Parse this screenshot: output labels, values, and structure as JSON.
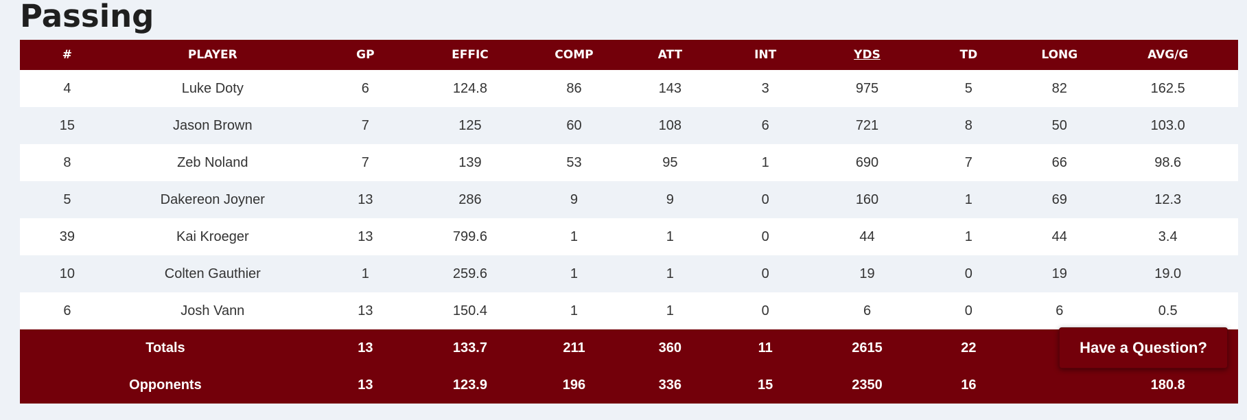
{
  "page": {
    "title": "Passing"
  },
  "table": {
    "headers": [
      "#",
      "PLAYER",
      "GP",
      "EFFIC",
      "COMP",
      "ATT",
      "INT",
      "YDS",
      "TD",
      "LONG",
      "AVG/G"
    ],
    "sorted_column": "YDS",
    "rows": [
      [
        "4",
        "Luke Doty",
        "6",
        "124.8",
        "86",
        "143",
        "3",
        "975",
        "5",
        "82",
        "162.5"
      ],
      [
        "15",
        "Jason Brown",
        "7",
        "125",
        "60",
        "108",
        "6",
        "721",
        "8",
        "50",
        "103.0"
      ],
      [
        "8",
        "Zeb Noland",
        "7",
        "139",
        "53",
        "95",
        "1",
        "690",
        "7",
        "66",
        "98.6"
      ],
      [
        "5",
        "Dakereon Joyner",
        "13",
        "286",
        "9",
        "9",
        "0",
        "160",
        "1",
        "69",
        "12.3"
      ],
      [
        "39",
        "Kai Kroeger",
        "13",
        "799.6",
        "1",
        "1",
        "0",
        "44",
        "1",
        "44",
        "3.4"
      ],
      [
        "10",
        "Colten Gauthier",
        "1",
        "259.6",
        "1",
        "1",
        "0",
        "19",
        "0",
        "19",
        "19.0"
      ],
      [
        "6",
        "Josh Vann",
        "13",
        "150.4",
        "1",
        "1",
        "0",
        "6",
        "0",
        "6",
        "0.5"
      ]
    ],
    "totals": {
      "label": "Totals",
      "gp": "13",
      "effic": "133.7",
      "comp": "211",
      "att": "360",
      "int": "11",
      "yds": "2615",
      "td": "22",
      "long": "",
      "avg": ""
    },
    "opponents": {
      "label": "Opponents",
      "gp": "13",
      "effic": "123.9",
      "comp": "196",
      "att": "336",
      "int": "15",
      "yds": "2350",
      "td": "16",
      "long": "",
      "avg": "180.8"
    }
  },
  "help": {
    "label": "Have a Question?"
  },
  "colors": {
    "accent": "#73000a",
    "background": "#eef2f7"
  }
}
